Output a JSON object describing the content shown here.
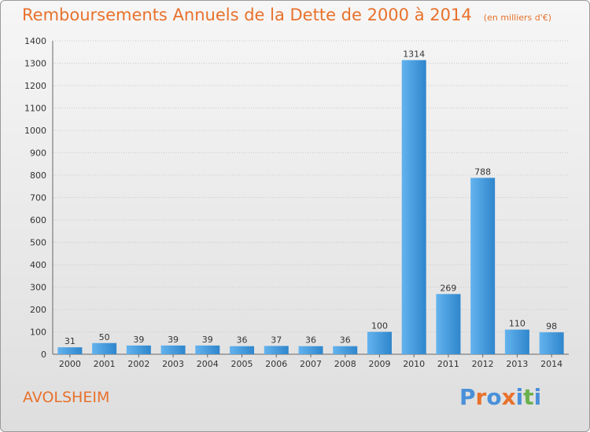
{
  "header": {
    "title": "Remboursements Annuels de la Dette de 2000 à 2014",
    "unit": "(en milliers d'€)"
  },
  "footer": {
    "city": "AVOLSHEIM",
    "logo_text": "Proxiti"
  },
  "colors": {
    "accent": "#e8712b",
    "bar_light": "#63b3ee",
    "bar_dark": "#2f86cc",
    "logo": [
      "#4a90d9",
      "#e8712b",
      "#4a90d9",
      "#e8712b",
      "#4a90d9",
      "#6ab04c",
      "#4a90d9"
    ]
  },
  "chart_data": {
    "type": "bar",
    "title": "Remboursements Annuels de la Dette de 2000 à 2014",
    "xlabel": "",
    "ylabel": "",
    "categories": [
      "2000",
      "2001",
      "2002",
      "2003",
      "2004",
      "2005",
      "2006",
      "2007",
      "2008",
      "2009",
      "2010",
      "2011",
      "2012",
      "2013",
      "2014"
    ],
    "values": [
      31,
      50,
      39,
      39,
      39,
      36,
      37,
      36,
      36,
      100,
      1314,
      269,
      788,
      110,
      98
    ],
    "ylim": [
      0,
      1400
    ],
    "yticks": [
      0,
      100,
      200,
      300,
      400,
      500,
      600,
      700,
      800,
      900,
      1000,
      1100,
      1200,
      1300,
      1400
    ],
    "grid": true,
    "legend": "none"
  }
}
